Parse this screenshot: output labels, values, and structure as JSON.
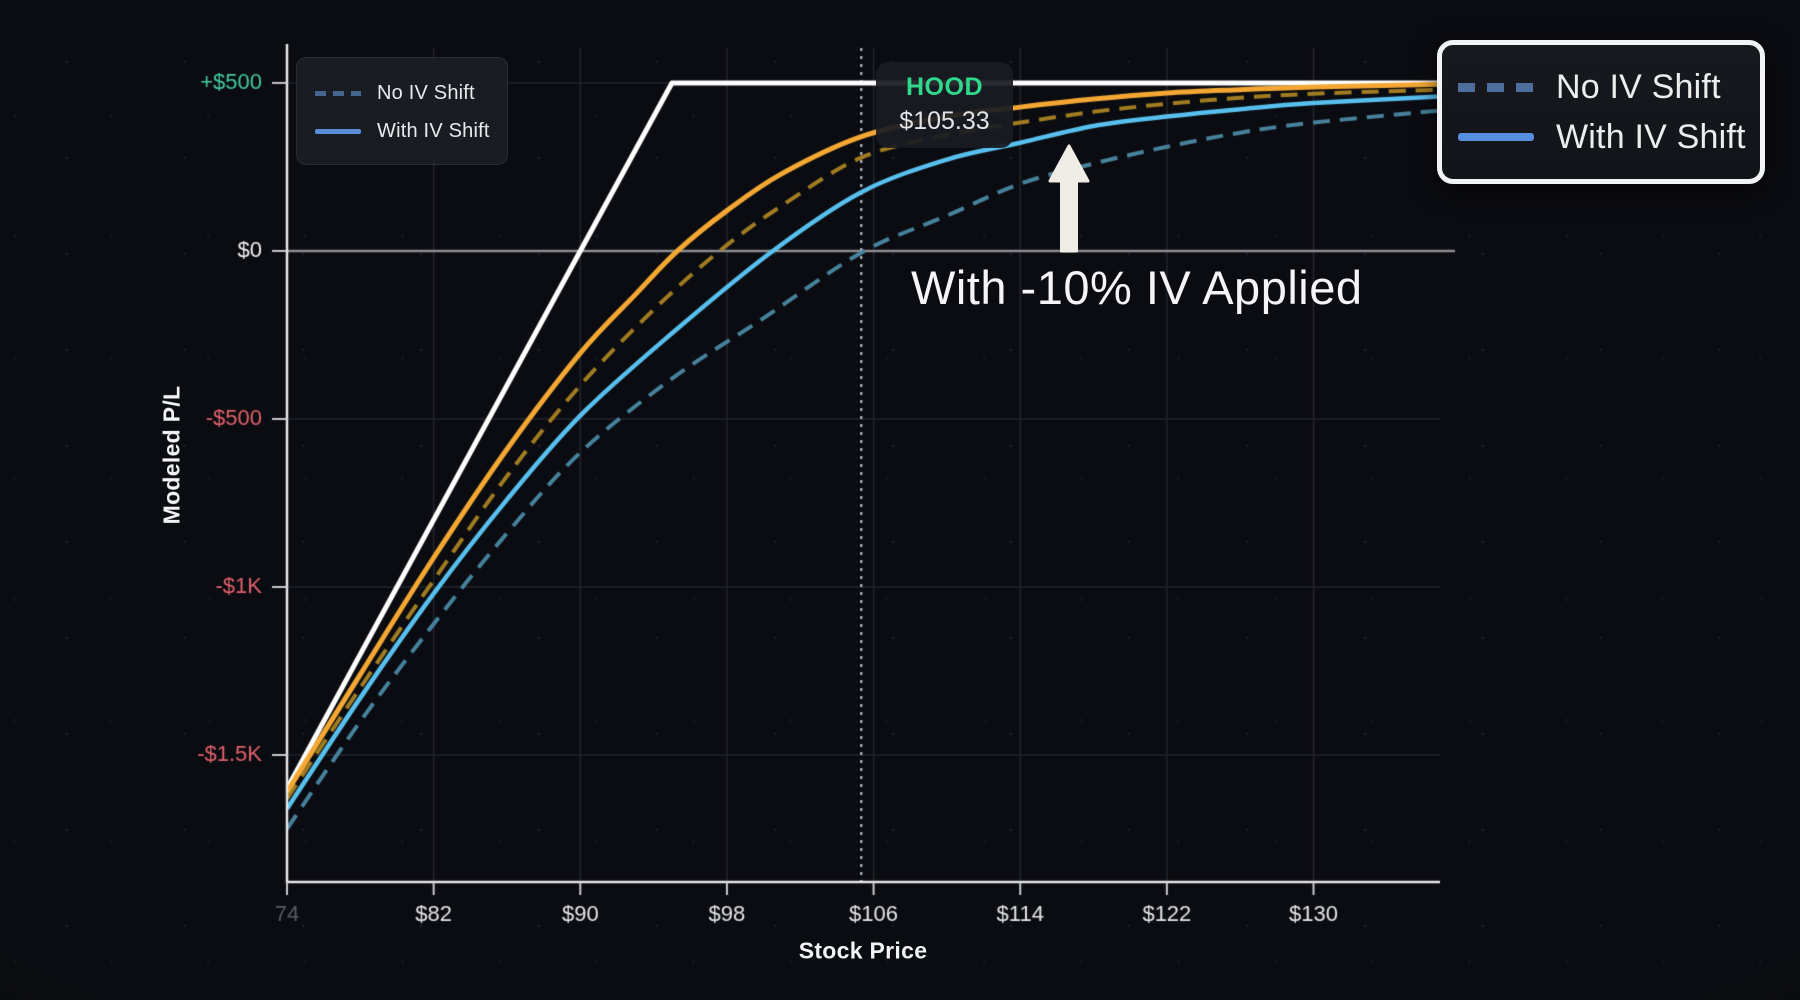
{
  "chart_data": {
    "type": "line",
    "xlabel": "Stock Price",
    "ylabel": "Modeled P/L",
    "x_range": [
      74,
      136.9
    ],
    "y_range": [
      -1878,
      604
    ],
    "grid": true,
    "x_ticks": [
      {
        "value": 74,
        "label": "74",
        "dim": true,
        "grid": false
      },
      {
        "value": 82,
        "label": "$82"
      },
      {
        "value": 90,
        "label": "$90"
      },
      {
        "value": 98,
        "label": "$98"
      },
      {
        "value": 106,
        "label": "$106"
      },
      {
        "value": 114,
        "label": "$114"
      },
      {
        "value": 122,
        "label": "$122"
      },
      {
        "value": 130,
        "label": "$130"
      }
    ],
    "y_ticks": [
      {
        "value": 500,
        "label": "+$500",
        "color": "#45c9a0"
      },
      {
        "value": 0,
        "label": "$0",
        "color": "#f0f0f2",
        "emphasis": true
      },
      {
        "value": -500,
        "label": "-$500",
        "color": "#e0616c"
      },
      {
        "value": -1000,
        "label": "-$1K",
        "color": "#e0616c"
      },
      {
        "value": -1500,
        "label": "-$1.5K",
        "color": "#e0616c"
      }
    ],
    "current_price_line": {
      "x": 105.33,
      "color": "#c7cad1"
    },
    "series": [
      {
        "id": "expiration-payoff",
        "color": "#ffffff",
        "line_style": "solid",
        "width": 5,
        "interpolation": "linear",
        "points": [
          [
            74,
            -1600
          ],
          [
            90,
            0
          ],
          [
            95,
            500
          ],
          [
            136.9,
            500
          ]
        ]
      },
      {
        "id": "blue-no-iv-shift",
        "legend": "No IV Shift",
        "color": "#47829c",
        "line_style": "dashed",
        "width": 4,
        "interpolation": "smooth",
        "points": [
          [
            74,
            -1720
          ],
          [
            78,
            -1400
          ],
          [
            82,
            -1110
          ],
          [
            86,
            -840
          ],
          [
            90,
            -600
          ],
          [
            95,
            -380
          ],
          [
            100,
            -200
          ],
          [
            105.33,
            -5
          ],
          [
            110,
            105
          ],
          [
            114,
            200
          ],
          [
            118,
            260
          ],
          [
            122,
            310
          ],
          [
            126,
            352
          ],
          [
            130,
            382
          ],
          [
            136.9,
            418
          ]
        ]
      },
      {
        "id": "blue-with-iv-shift",
        "legend": "With IV Shift",
        "color": "#58c0ee",
        "line_style": "solid",
        "width": 4.5,
        "interpolation": "smooth",
        "points": [
          [
            74,
            -1660
          ],
          [
            78,
            -1330
          ],
          [
            82,
            -1020
          ],
          [
            86,
            -740
          ],
          [
            90,
            -490
          ],
          [
            95,
            -245
          ],
          [
            100.5,
            0
          ],
          [
            105.33,
            175
          ],
          [
            110,
            272
          ],
          [
            114,
            322
          ],
          [
            118,
            372
          ],
          [
            122,
            400
          ],
          [
            126,
            422
          ],
          [
            130,
            440
          ],
          [
            136.9,
            460
          ]
        ]
      },
      {
        "id": "orange-no-iv-shift",
        "color": "#a07c22",
        "line_style": "dashed",
        "width": 4,
        "interpolation": "smooth",
        "points": [
          [
            74,
            -1630
          ],
          [
            78,
            -1300
          ],
          [
            82,
            -980
          ],
          [
            86,
            -670
          ],
          [
            90,
            -400
          ],
          [
            94,
            -175
          ],
          [
            97.6,
            0
          ],
          [
            101,
            135
          ],
          [
            105.33,
            278
          ],
          [
            110,
            345
          ],
          [
            114,
            382
          ],
          [
            118,
            414
          ],
          [
            122,
            438
          ],
          [
            126,
            456
          ],
          [
            130,
            468
          ],
          [
            136.9,
            480
          ]
        ]
      },
      {
        "id": "orange-with-iv-shift",
        "color": "#f4a833",
        "line_style": "solid",
        "width": 5,
        "interpolation": "smooth",
        "points": [
          [
            74,
            -1610
          ],
          [
            78,
            -1260
          ],
          [
            82,
            -913
          ],
          [
            86,
            -590
          ],
          [
            90,
            -304
          ],
          [
            93,
            -130
          ],
          [
            95.3,
            0
          ],
          [
            98,
            120
          ],
          [
            101,
            230
          ],
          [
            105.33,
            340
          ],
          [
            110,
            400
          ],
          [
            114,
            428
          ],
          [
            118,
            452
          ],
          [
            122,
            470
          ],
          [
            126,
            480
          ],
          [
            130,
            488
          ],
          [
            136.9,
            496
          ]
        ]
      }
    ],
    "legend": [
      {
        "label": "No IV Shift",
        "style": "dashed",
        "color": "#47668f"
      },
      {
        "label": "With IV Shift",
        "style": "solid",
        "color": "#5a8ed8"
      }
    ],
    "legend_position": "top-left"
  },
  "tooltip": {
    "symbol": "HOOD",
    "price": "$105.33",
    "symbol_color": "#2fd98c"
  },
  "annotations": {
    "iv_note": "With -10% IV Applied",
    "arrow_color": "#efece5"
  },
  "magnified_legend": {
    "items": [
      {
        "label": "No IV Shift",
        "style": "dashed",
        "color": "#4e6e9d"
      },
      {
        "label": "With IV Shift",
        "style": "solid",
        "color": "#578ee0"
      }
    ]
  },
  "colors": {
    "background": "#0b0c11",
    "gridline": "#24262d",
    "zero_line": "#8c8d93",
    "axis_line": "#e8e9ec",
    "tick_label": "#e4e5e9",
    "tick_label_dim": "#595c64"
  }
}
